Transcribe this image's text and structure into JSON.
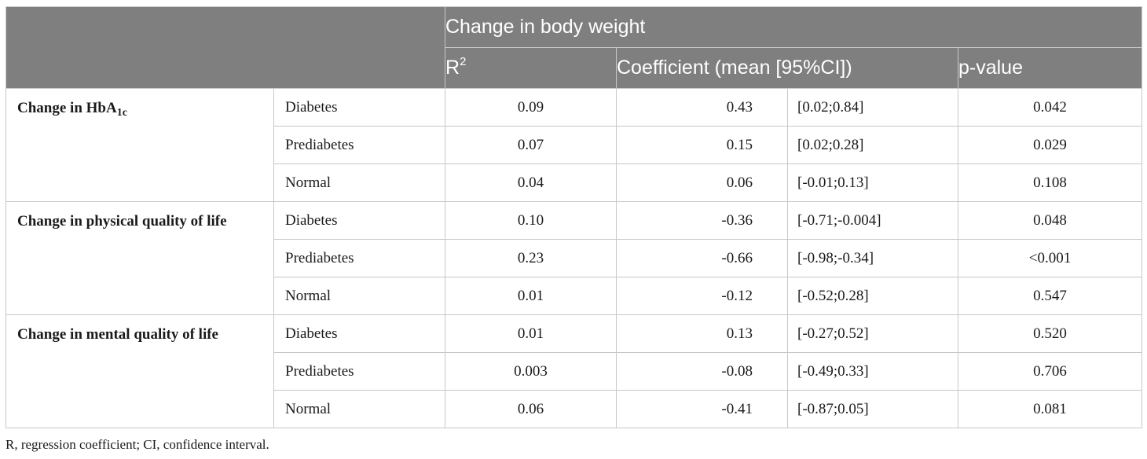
{
  "header": {
    "group_label": "Change in body weight",
    "r2_label_base": "R",
    "r2_label_sup": "2",
    "coef_label": "Coefficient (mean [95%CI])",
    "p_label": "p-value"
  },
  "groups": [
    {
      "label_base": "Change in HbA",
      "label_sub": "1c",
      "rows": [
        {
          "subgroup": "Diabetes",
          "r2": "0.09",
          "coef": "0.43",
          "ci": "[0.02;0.84]",
          "p": "0.042"
        },
        {
          "subgroup": "Prediabetes",
          "r2": "0.07",
          "coef": "0.15",
          "ci": "[0.02;0.28]",
          "p": "0.029"
        },
        {
          "subgroup": "Normal",
          "r2": "0.04",
          "coef": "0.06",
          "ci": "[-0.01;0.13]",
          "p": "0.108"
        }
      ]
    },
    {
      "label_base": "Change in physical quality of life",
      "label_sub": "",
      "rows": [
        {
          "subgroup": "Diabetes",
          "r2": "0.10",
          "coef": "-0.36",
          "ci": "[-0.71;-0.004]",
          "p": "0.048"
        },
        {
          "subgroup": "Prediabetes",
          "r2": "0.23",
          "coef": "-0.66",
          "ci": "[-0.98;-0.34]",
          "p": "<0.001"
        },
        {
          "subgroup": "Normal",
          "r2": "0.01",
          "coef": "-0.12",
          "ci": "[-0.52;0.28]",
          "p": "0.547"
        }
      ]
    },
    {
      "label_base": "Change in mental quality of life",
      "label_sub": "",
      "rows": [
        {
          "subgroup": "Diabetes",
          "r2": "0.01",
          "coef": "0.13",
          "ci": "[-0.27;0.52]",
          "p": "0.520"
        },
        {
          "subgroup": "Prediabetes",
          "r2": "0.003",
          "coef": "-0.08",
          "ci": "[-0.49;0.33]",
          "p": "0.706"
        },
        {
          "subgroup": "Normal",
          "r2": "0.06",
          "coef": "-0.41",
          "ci": "[-0.87;0.05]",
          "p": "0.081"
        }
      ]
    }
  ],
  "footnote": "R, regression coefficient; CI, confidence interval."
}
